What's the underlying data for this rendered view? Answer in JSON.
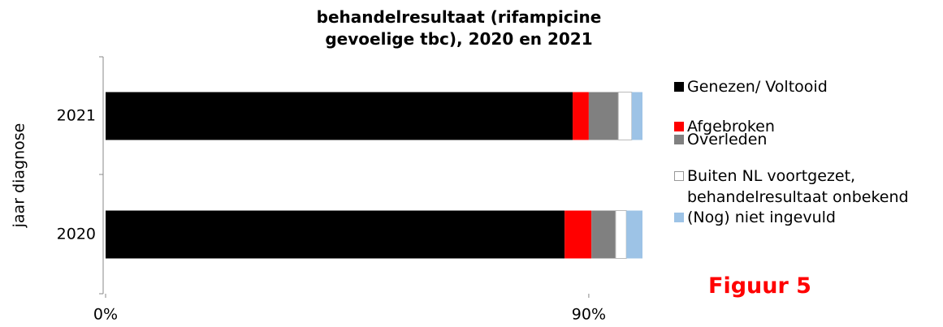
{
  "chart_data": {
    "type": "stacked-bar-horizontal",
    "title": "behandelresultaat (rifampicine gevoelige tbc), 2020 en 2021",
    "ylabel": "jaar diagnose",
    "categories": [
      "2020",
      "2021"
    ],
    "series": [
      {
        "name": "Genezen/ Voltooid",
        "color": "#000000",
        "values": [
          85.5,
          87
        ]
      },
      {
        "name": "Afgebroken",
        "color": "#ff0000",
        "values": [
          5,
          3
        ]
      },
      {
        "name": "Overleden",
        "color": "#808080",
        "values": [
          4.5,
          5.5
        ]
      },
      {
        "name": "Buiten NL voortgezet, behandelresultaat onbekend",
        "color": "#ffffff",
        "values": [
          2,
          2.5
        ]
      },
      {
        "name": "(Nog) niet ingevuld",
        "color": "#9dc3e6",
        "values": [
          3,
          2
        ]
      }
    ],
    "xlim": [
      0,
      100
    ],
    "xticks": [
      {
        "value": 0,
        "label": "0%"
      },
      {
        "value": 90,
        "label": "90%"
      }
    ],
    "legend": "right",
    "annotation": "Figuur 5"
  }
}
